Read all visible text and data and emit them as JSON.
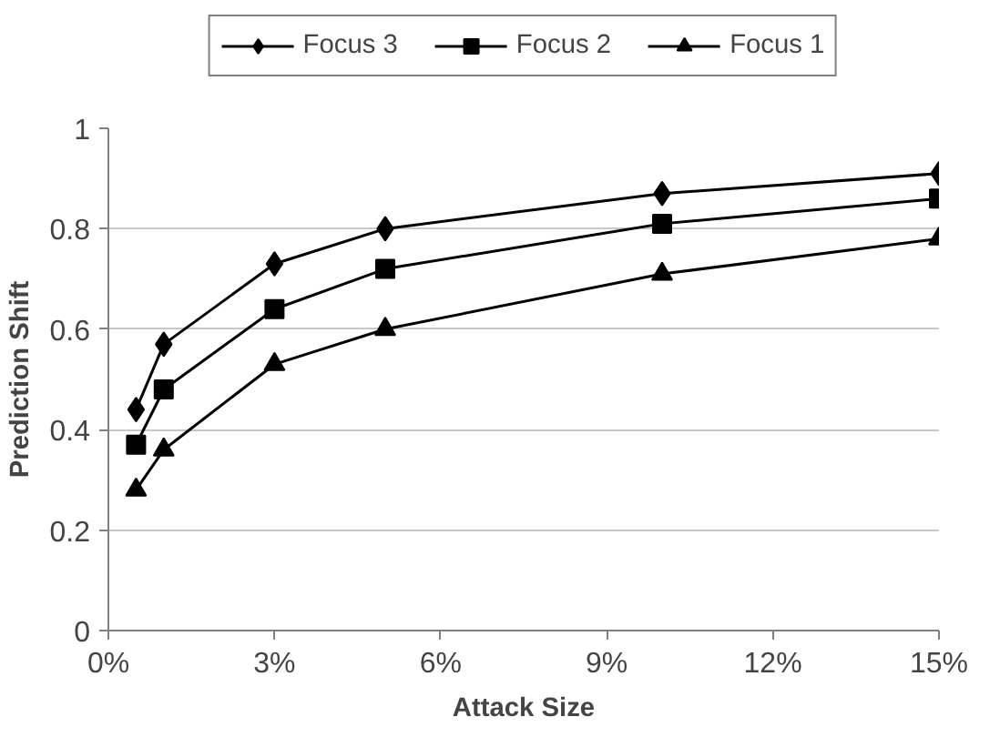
{
  "chart_data": {
    "type": "line",
    "xlabel": "Attack Size",
    "ylabel": "Prediction Shift",
    "x": [
      0.5,
      1,
      3,
      5,
      10,
      15
    ],
    "series": [
      {
        "name": "Focus 3",
        "color": "#000000",
        "marker": "diamond",
        "values": [
          0.44,
          0.57,
          0.73,
          0.8,
          0.87,
          0.91
        ]
      },
      {
        "name": "Focus 2",
        "color": "#000000",
        "marker": "square",
        "values": [
          0.37,
          0.48,
          0.64,
          0.72,
          0.81,
          0.86
        ]
      },
      {
        "name": "Focus 1",
        "color": "#000000",
        "marker": "triangle",
        "values": [
          0.28,
          0.36,
          0.53,
          0.6,
          0.71,
          0.78
        ]
      }
    ],
    "xlim": [
      0,
      15
    ],
    "xticks": [
      {
        "value": 0,
        "label": "0%"
      },
      {
        "value": 3,
        "label": "3%"
      },
      {
        "value": 6,
        "label": "6%"
      },
      {
        "value": 9,
        "label": "9%"
      },
      {
        "value": 12,
        "label": "12%"
      },
      {
        "value": 15,
        "label": "15%"
      }
    ],
    "ylim": [
      0,
      1
    ],
    "yticks": [
      0,
      {
        "value": 0.2,
        "label": "0.2"
      },
      {
        "value": 0.4,
        "label": "0.4"
      },
      {
        "value": 0.6,
        "label": "0.6"
      },
      {
        "value": 0.8,
        "label": "0.8"
      },
      1
    ],
    "grid": "y",
    "legend": "top",
    "line_style": "solid"
  }
}
